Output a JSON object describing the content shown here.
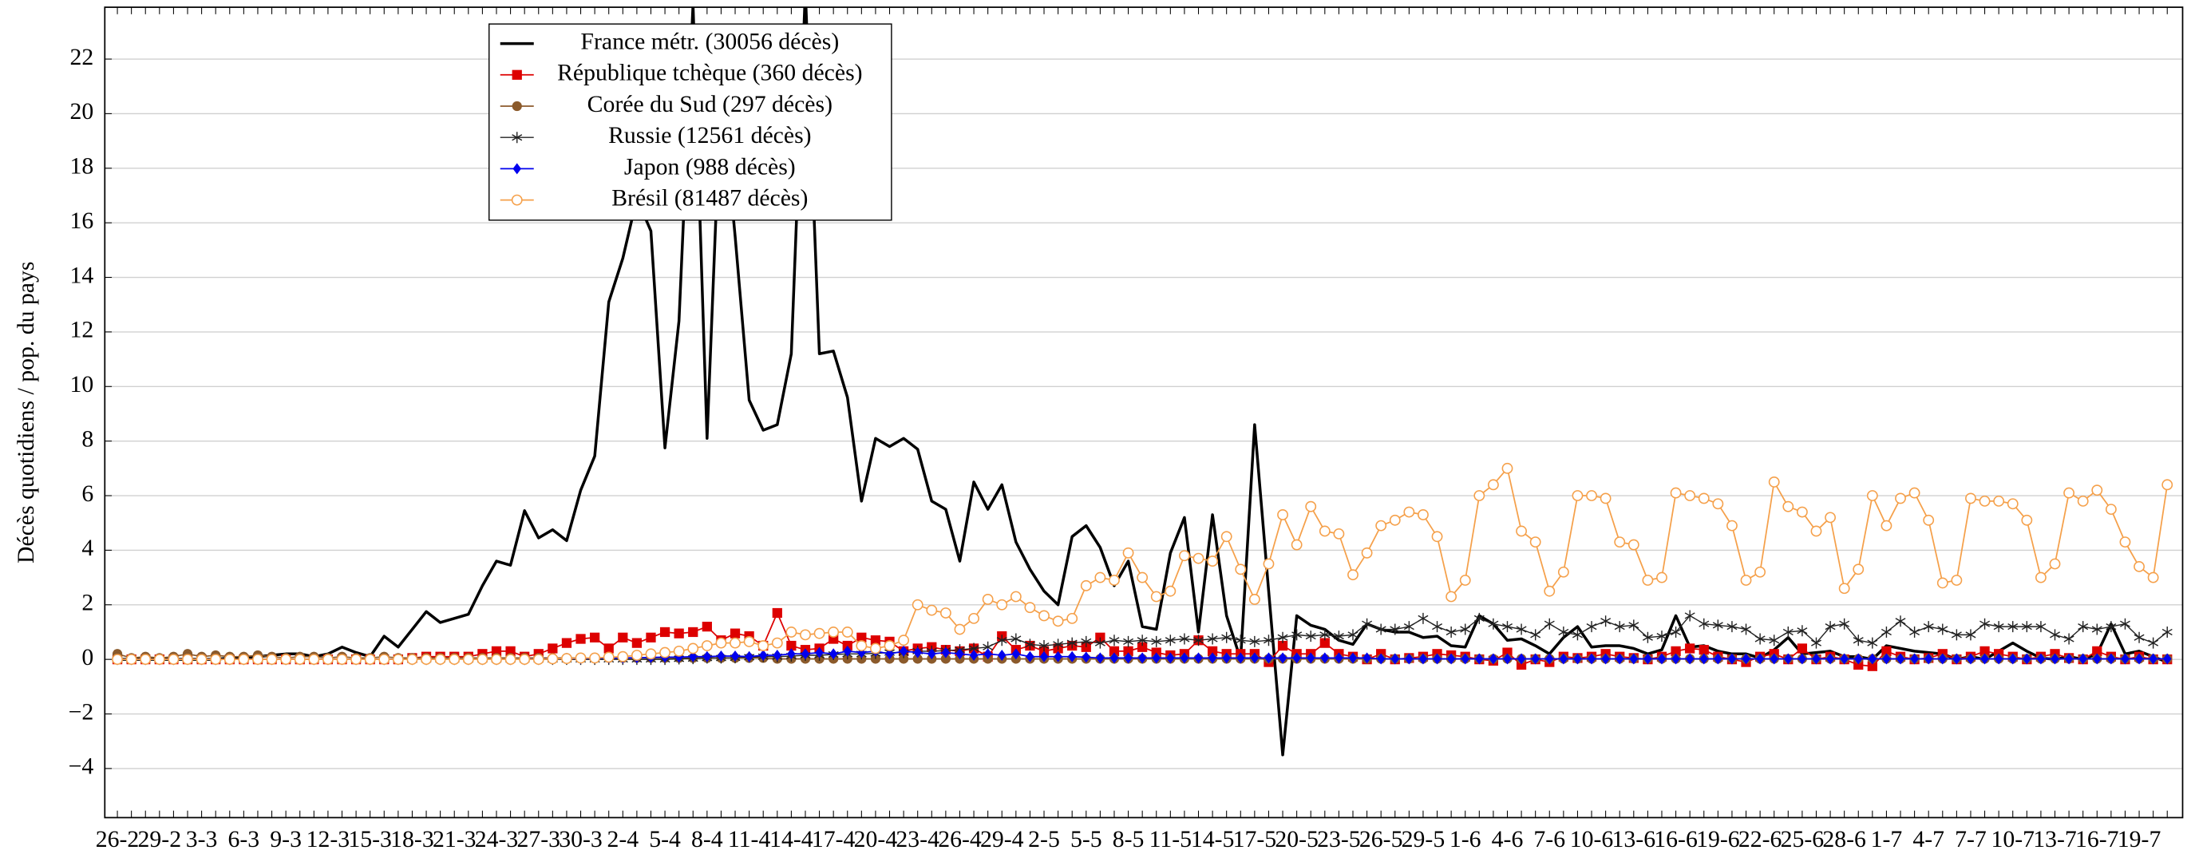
{
  "chart_data": {
    "type": "line",
    "y_label": "Décès quotidiens / pop. du pays",
    "ylim": [
      -5.8,
      23.9
    ],
    "yticks": [
      {
        "value": -4,
        "label": "−4"
      },
      {
        "value": -2,
        "label": "−2"
      },
      0,
      2,
      4,
      6,
      8,
      10,
      12,
      14,
      16,
      18,
      20,
      22
    ],
    "grid": true,
    "legend": "upper left",
    "categories": [
      "26-2",
      null,
      null,
      "29-2",
      null,
      null,
      "3-3",
      null,
      null,
      "6-3",
      null,
      null,
      "9-3",
      null,
      null,
      "12-3",
      null,
      null,
      "15-3",
      null,
      null,
      "18-3",
      null,
      null,
      "21-3",
      null,
      null,
      "24-3",
      null,
      null,
      "27-3",
      null,
      null,
      "30-3",
      null,
      null,
      "2-4",
      null,
      null,
      "5-4",
      null,
      null,
      "8-4",
      null,
      null,
      "11-4",
      null,
      null,
      "14-4",
      null,
      null,
      "17-4",
      null,
      null,
      "20-4",
      null,
      null,
      "23-4",
      null,
      null,
      "26-4",
      null,
      null,
      "29-4",
      null,
      null,
      "2-5",
      null,
      null,
      "5-5",
      null,
      null,
      "8-5",
      null,
      null,
      "11-5",
      null,
      null,
      "14-5",
      null,
      null,
      "17-5",
      null,
      null,
      "20-5",
      null,
      null,
      "23-5",
      null,
      null,
      "26-5",
      null,
      null,
      "29-5",
      null,
      null,
      "1-6",
      null,
      null,
      "4-6",
      null,
      null,
      "7-6",
      null,
      null,
      "10-6",
      null,
      null,
      "13-6",
      null,
      null,
      "16-6",
      null,
      null,
      "19-6",
      null,
      null,
      "22-6",
      null,
      null,
      "25-6",
      null,
      null,
      "28-6",
      null,
      null,
      "1-7",
      null,
      null,
      "4-7",
      null,
      null,
      "7-7",
      null,
      null,
      "10-7",
      null,
      null,
      "13-7",
      null,
      null,
      "16-7",
      null,
      null,
      "19-7",
      null,
      null
    ],
    "series": [
      {
        "name": "France métr. (30056 décès)",
        "color": "#000000",
        "marker": "none",
        "width": 2,
        "values": [
          0,
          0,
          0,
          0,
          0,
          0,
          0,
          0,
          0.05,
          0.05,
          0.1,
          0.15,
          0.2,
          0.2,
          0.1,
          0.2,
          0.45,
          0.25,
          0.1,
          0.85,
          0.45,
          1.1,
          1.75,
          1.35,
          1.5,
          1.65,
          2.7,
          3.6,
          3.45,
          5.45,
          4.45,
          4.75,
          4.35,
          6.2,
          7.45,
          13.1,
          14.7,
          16.9,
          15.7,
          7.75,
          12.4,
          24,
          8.1,
          21,
          15.5,
          9.5,
          8.4,
          8.6,
          11.2,
          24.5,
          11.2,
          11.3,
          9.6,
          5.8,
          8.1,
          7.8,
          8.1,
          7.7,
          5.8,
          5.5,
          3.6,
          6.5,
          5.5,
          6.4,
          4.3,
          3.3,
          2.5,
          2.0,
          4.5,
          4.9,
          4.1,
          2.7,
          3.6,
          1.2,
          1.1,
          3.9,
          5.2,
          1.0,
          5.3,
          1.6,
          0.0,
          8.6,
          2.5,
          -3.5,
          1.6,
          1.25,
          1.1,
          0.7,
          0.55,
          1.3,
          1.1,
          1.0,
          1.0,
          0.8,
          0.85,
          0.5,
          0.45,
          1.6,
          1.3,
          0.7,
          0.75,
          0.5,
          0.2,
          0.8,
          1.2,
          0.45,
          0.5,
          0.5,
          0.4,
          0.2,
          0.35,
          1.6,
          0.45,
          0.5,
          0.3,
          0.2,
          0.2,
          0.05,
          0.35,
          0.8,
          0.2,
          0.25,
          0.3,
          0.1,
          0.1,
          0.0,
          0.5,
          0.4,
          0.3,
          0.25,
          0.2,
          0.0,
          0.1,
          0.0,
          0.3,
          0.6,
          0.3,
          0.05,
          0.0,
          0.1,
          0.0,
          0.2,
          1.3,
          0.2,
          0.3,
          0.1,
          -0.1
        ]
      },
      {
        "name": "République tchèque (360 décès)",
        "color": "#dd0000",
        "marker": "square",
        "width": 1,
        "values": [
          0,
          0,
          0,
          0,
          0,
          0,
          0,
          0,
          0,
          0,
          0,
          0,
          0,
          0,
          0,
          0,
          0,
          0,
          0,
          0,
          0,
          0.05,
          0.1,
          0.1,
          0.1,
          0.1,
          0.2,
          0.3,
          0.3,
          0.1,
          0.2,
          0.4,
          0.6,
          0.75,
          0.8,
          0.4,
          0.8,
          0.6,
          0.8,
          1.0,
          0.95,
          1.0,
          1.2,
          0.7,
          0.95,
          0.85,
          0.5,
          1.7,
          0.5,
          0.35,
          0.4,
          0.75,
          0.5,
          0.8,
          0.7,
          0.65,
          0.3,
          0.4,
          0.45,
          0.35,
          0.3,
          0.4,
          0.1,
          0.85,
          0.35,
          0.5,
          0.3,
          0.4,
          0.5,
          0.45,
          0.8,
          0.3,
          0.3,
          0.45,
          0.25,
          0.15,
          0.2,
          0.7,
          0.3,
          0.2,
          0.2,
          0.2,
          -0.1,
          0.5,
          0.2,
          0.2,
          0.6,
          0.2,
          0.1,
          0.0,
          0.2,
          0.0,
          0.05,
          0.1,
          0.2,
          0.15,
          0.1,
          0.0,
          -0.05,
          0.25,
          -0.2,
          0.0,
          -0.1,
          0.1,
          0.05,
          0.1,
          0.2,
          0.1,
          0.05,
          0.0,
          0.1,
          0.3,
          0.4,
          0.35,
          0.1,
          0.0,
          -0.1,
          0.1,
          0.2,
          0.0,
          0.4,
          0.0,
          0.1,
          0.0,
          -0.2,
          -0.25,
          0.3,
          0.1,
          0.0,
          0.05,
          0.2,
          0.0,
          0.1,
          0.3,
          0.2,
          0.1,
          0.0,
          0.1,
          0.2,
          0.05,
          0.0,
          0.3,
          0.1,
          0.0,
          0.1,
          0.0,
          0.0
        ]
      },
      {
        "name": "Corée du Sud (297 décès)",
        "color": "#8b5a2b",
        "marker": "dot",
        "width": 1,
        "values": [
          0.2,
          0.05,
          0.1,
          0.05,
          0.1,
          0.2,
          0.1,
          0.15,
          0.1,
          0.1,
          0.15,
          0.1,
          0.05,
          0.1,
          0.1,
          0.05,
          0.1,
          0.05,
          0.05,
          0.1,
          0.05,
          0.05,
          0.05,
          0.05,
          0.05,
          0.05,
          0.05,
          0.05,
          0.05,
          0.05,
          0.05,
          0.05,
          0.05,
          0.05,
          0.05,
          0.05,
          0.05,
          0.05,
          0.05,
          0.05,
          0.05,
          0.05,
          0.05,
          0.05,
          0.05,
          0.05,
          0.05,
          0.02,
          0.02,
          0.02,
          0.02,
          0.02,
          0.02,
          0.02,
          0.02,
          0.02,
          0.02,
          0.02,
          0.02,
          0.02,
          0.02,
          0.02,
          0.02,
          0.02,
          0.02,
          0.02,
          0.02,
          0.02,
          0.02,
          0.02,
          0.02,
          0.02,
          0.02,
          0.02,
          0.02,
          0.02,
          0.02,
          0.02,
          0.02,
          0.02,
          0.02,
          0.02,
          0.02,
          0.02,
          0.02,
          0.02,
          0.02,
          0.02,
          0.02,
          0.02,
          0.02,
          0.02,
          0.02,
          0.02,
          0.02,
          0.02,
          0.02,
          0.02,
          0.02,
          0.02,
          0.02,
          0.02,
          0.02,
          0.02,
          0.02,
          0.02,
          0.02,
          0.02,
          0.02,
          0.02,
          0.02,
          0.02,
          0.02,
          0.02,
          0.02,
          0.02,
          0.02,
          0.02,
          0.02,
          0.02,
          0.02,
          0.02,
          0.02,
          0.02,
          0.02,
          0.02,
          0.02,
          0.02,
          0.02,
          0.02,
          0.02,
          0.02,
          0.02,
          0.02,
          0.02,
          0.02,
          0.02,
          0.02,
          0.02,
          0.02,
          0.02,
          0.02,
          0.02,
          0.02,
          0.02,
          0.02,
          0.02
        ]
      },
      {
        "name": "Russie (12561 décès)",
        "color": "#222222",
        "marker": "star",
        "width": 0.8,
        "values": [
          0,
          0,
          0,
          0,
          0,
          0,
          0,
          0,
          0,
          0,
          0,
          0,
          0,
          0,
          0,
          0,
          0,
          0,
          0,
          0,
          0,
          0,
          0,
          0,
          0,
          0,
          0,
          0,
          0,
          0,
          0,
          0,
          0,
          0,
          0,
          0,
          0,
          0,
          0,
          0,
          0.02,
          0.03,
          0.05,
          0.05,
          0.06,
          0.08,
          0.1,
          0.1,
          0.12,
          0.15,
          0.15,
          0.18,
          0.2,
          0.2,
          0.22,
          0.25,
          0.25,
          0.3,
          0.3,
          0.32,
          0.35,
          0.4,
          0.45,
          0.7,
          0.75,
          0.55,
          0.5,
          0.55,
          0.6,
          0.65,
          0.6,
          0.7,
          0.65,
          0.7,
          0.65,
          0.7,
          0.75,
          0.7,
          0.75,
          0.8,
          0.7,
          0.65,
          0.7,
          0.8,
          0.9,
          0.85,
          0.9,
          0.85,
          0.9,
          1.3,
          1.1,
          1.1,
          1.2,
          1.5,
          1.2,
          1.0,
          1.1,
          1.5,
          1.3,
          1.2,
          1.1,
          0.9,
          1.3,
          1.0,
          0.9,
          1.2,
          1.4,
          1.2,
          1.25,
          0.8,
          0.85,
          1.0,
          1.6,
          1.3,
          1.25,
          1.2,
          1.1,
          0.75,
          0.7,
          1.0,
          1.05,
          0.6,
          1.2,
          1.3,
          0.7,
          0.6,
          1.0,
          1.4,
          1.0,
          1.2,
          1.1,
          0.9,
          0.9,
          1.3,
          1.2,
          1.2,
          1.2,
          1.2,
          0.9,
          0.75,
          1.2,
          1.1,
          1.2,
          1.3,
          0.8,
          0.6,
          1.0
        ]
      },
      {
        "name": "Japon (988 décès)",
        "color": "#0000ee",
        "marker": "diamond",
        "width": 1,
        "values": [
          0,
          0,
          0,
          0,
          0,
          0,
          0,
          0,
          0,
          0,
          0,
          0,
          0,
          0,
          0,
          0,
          0,
          0,
          0,
          0,
          0,
          0,
          0,
          0,
          0,
          0,
          0,
          0,
          0,
          0,
          0.02,
          0.02,
          0.03,
          0.03,
          0.04,
          0.05,
          0.05,
          0.06,
          0.07,
          0.08,
          0.08,
          0.1,
          0.1,
          0.12,
          0.12,
          0.1,
          0.15,
          0.15,
          0.2,
          0.2,
          0.25,
          0.2,
          0.3,
          0.25,
          0.3,
          0.2,
          0.3,
          0.25,
          0.2,
          0.25,
          0.2,
          0.15,
          0.2,
          0.15,
          0.2,
          0.1,
          0.1,
          0.1,
          0.1,
          0.08,
          0.05,
          0.05,
          0.05,
          0.05,
          0.05,
          0.05,
          0.05,
          0.05,
          0.05,
          0.05,
          0.05,
          0.05,
          0.05,
          0.05,
          0.05,
          0.05,
          0.05,
          0.05,
          0.05,
          0.05,
          0.02,
          0.02,
          0.02,
          0.02,
          0.02,
          0.02,
          0.02,
          0.02,
          0.02,
          0.02,
          0.02,
          0.02,
          0.02,
          0.02,
          0.02,
          0.02,
          0.02,
          0.02,
          0.02,
          0.02,
          0.02,
          0.02,
          0.02,
          0.02,
          0.02,
          0.02,
          0.02,
          0.02,
          0.02,
          0.02,
          0.02,
          0.02,
          0.02,
          0.02,
          0.02,
          0.02,
          0.02,
          0.02,
          0.02,
          0.02,
          0.02,
          0.02,
          0.02,
          0.02,
          0.02,
          0.02,
          0.02,
          0.02,
          0.02,
          0.02,
          0.02,
          0.02,
          0.02,
          0.02,
          0.02,
          0.02,
          0.02
        ]
      },
      {
        "name": "Brésil (81487 décès)",
        "color": "#f5a04a",
        "marker": "ring",
        "width": 1,
        "values": [
          0,
          0,
          0,
          0,
          0,
          0,
          0,
          0,
          0,
          0,
          0,
          0,
          0,
          0,
          0,
          0,
          0,
          0,
          0,
          0,
          0,
          0,
          0,
          0,
          0,
          0,
          0,
          0,
          0,
          0,
          0,
          0.02,
          0.03,
          0.05,
          0.05,
          0.08,
          0.1,
          0.15,
          0.2,
          0.25,
          0.3,
          0.4,
          0.5,
          0.6,
          0.6,
          0.65,
          0.5,
          0.6,
          1.0,
          0.9,
          0.95,
          1.0,
          1.0,
          0.5,
          0.4,
          0.5,
          0.7,
          2.0,
          1.8,
          1.7,
          1.1,
          1.5,
          2.2,
          2.0,
          2.3,
          1.9,
          1.6,
          1.4,
          1.5,
          2.7,
          3.0,
          2.9,
          3.9,
          3.0,
          2.3,
          2.5,
          3.8,
          3.7,
          3.6,
          4.5,
          3.3,
          2.2,
          3.5,
          5.3,
          4.2,
          5.6,
          4.7,
          4.6,
          3.1,
          3.9,
          4.9,
          5.1,
          5.4,
          5.3,
          4.5,
          2.3,
          2.9,
          6.0,
          6.4,
          7.0,
          4.7,
          4.3,
          2.5,
          3.2,
          6.0,
          6.0,
          5.9,
          4.3,
          4.2,
          2.9,
          3.0,
          6.1,
          6.0,
          5.9,
          5.7,
          4.9,
          2.9,
          3.2,
          6.5,
          5.6,
          5.4,
          4.7,
          5.2,
          2.6,
          3.3,
          6.0,
          4.9,
          5.9,
          6.1,
          5.1,
          2.8,
          2.9,
          5.9,
          5.8,
          5.8,
          5.7,
          5.1,
          3.0,
          3.5,
          6.1,
          5.8,
          6.2,
          5.5,
          4.3,
          3.4,
          3.0,
          6.4
        ]
      }
    ]
  }
}
